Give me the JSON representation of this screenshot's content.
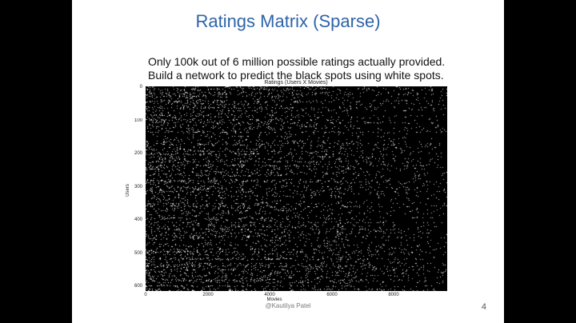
{
  "slide": {
    "title": "Ratings Matrix (Sparse)",
    "caption_lines": [
      "Only 100k out of 6 million possible ratings actually provided.",
      "Build a network to predict the black spots using white spots."
    ],
    "footer": "@Kautilya Patel",
    "page_number": "4"
  },
  "chart_data": {
    "type": "heatmap",
    "title": "Ratings (Users X Movies)",
    "xlabel": "Movies",
    "ylabel": "Users",
    "x_ticks": [
      "0",
      "2000",
      "4000",
      "6000",
      "8000"
    ],
    "y_ticks": [
      "0",
      "100",
      "200",
      "300",
      "400",
      "500",
      "600"
    ],
    "xlim": [
      0,
      9724
    ],
    "ylim": [
      0,
      610
    ],
    "colors": {
      "background": "#000000",
      "rating": "#ffffff"
    }
  }
}
